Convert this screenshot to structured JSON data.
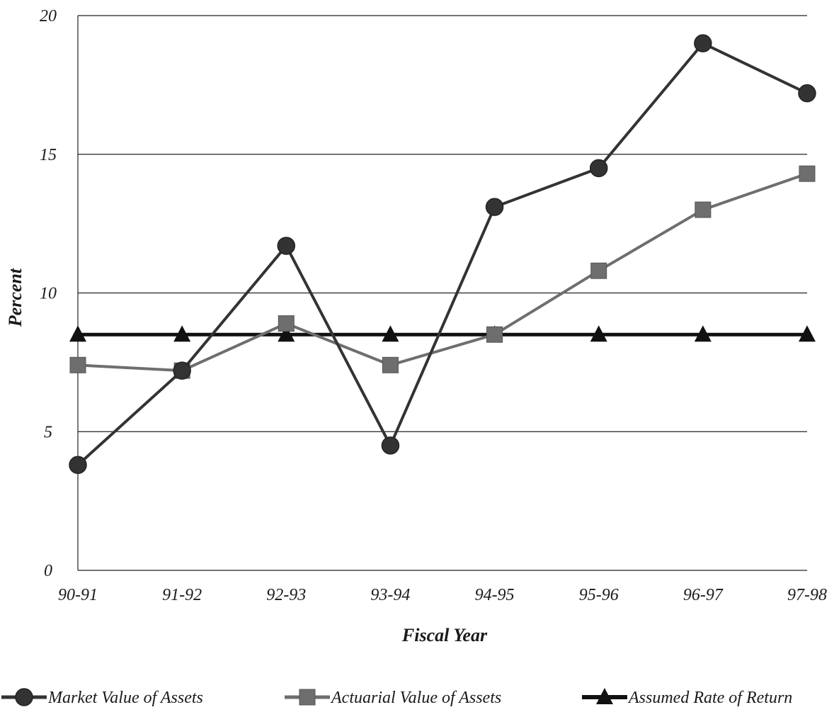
{
  "chart_data": {
    "type": "line",
    "title": "",
    "xlabel": "Fiscal Year",
    "ylabel": "Percent",
    "ylim": [
      0,
      20
    ],
    "yticks": [
      "0",
      "5",
      "10",
      "15",
      "20"
    ],
    "categories": [
      "90-91",
      "91-92",
      "92-93",
      "93-94",
      "94-95",
      "95-96",
      "96-97",
      "97-98"
    ],
    "grid": "horizontal",
    "legend_position": "bottom",
    "series": [
      {
        "name": "Market Value of Assets",
        "marker": "circle",
        "color": "#333333",
        "values": [
          3.8,
          7.2,
          11.7,
          4.5,
          13.1,
          14.5,
          19.0,
          17.2
        ]
      },
      {
        "name": "Actuarial Value of Assets",
        "marker": "square",
        "color": "#6e6e6e",
        "values": [
          7.4,
          7.2,
          8.9,
          7.4,
          8.5,
          10.8,
          13.0,
          14.3
        ]
      },
      {
        "name": "Assumed Rate of Return",
        "marker": "triangle",
        "color": "#111111",
        "values": [
          8.5,
          8.5,
          8.5,
          8.5,
          8.5,
          8.5,
          8.5,
          8.5
        ]
      }
    ]
  }
}
